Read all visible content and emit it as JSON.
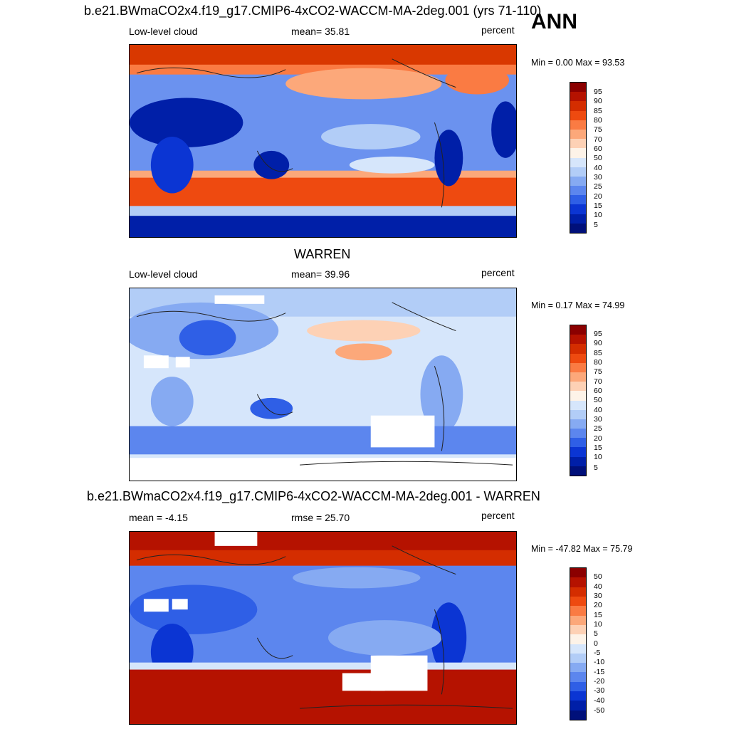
{
  "labels": {
    "title1": "b.e21.BWmaCO2x4.f19_g17.CMIP6-4xCO2-WACCM-MA-2deg.001 (yrs 71-110)",
    "ann": "ANN",
    "title2": "WARREN",
    "title3": "b.e21.BWmaCO2x4.f19_g17.CMIP6-4xCO2-WACCM-MA-2deg.001 - WARREN"
  },
  "panels": [
    {
      "left_label": "Low-level cloud",
      "center_label": "mean=  35.81",
      "right_label": "percent",
      "minmax": "Min =   0.00 Max =  93.53",
      "colorbar_ticks": [
        "95",
        "90",
        "85",
        "80",
        "75",
        "70",
        "60",
        "50",
        "40",
        "30",
        "25",
        "20",
        "15",
        "10",
        "5"
      ]
    },
    {
      "left_label": "Low-level cloud",
      "center_label": "mean=  39.96",
      "right_label": "percent",
      "minmax": "Min =   0.17 Max =  74.99",
      "colorbar_ticks": [
        "95",
        "90",
        "85",
        "80",
        "75",
        "70",
        "60",
        "50",
        "40",
        "30",
        "25",
        "20",
        "15",
        "10",
        "5"
      ]
    },
    {
      "left_label": "mean =  -4.15",
      "center_label": "rmse =  25.70",
      "right_label": "percent",
      "minmax": "Min = -47.82 Max =  75.79",
      "colorbar_ticks": [
        "50",
        "40",
        "30",
        "20",
        "15",
        "10",
        "5",
        "0",
        "-5",
        "-10",
        "-15",
        "-20",
        "-30",
        "-40",
        "-50"
      ]
    }
  ],
  "colors": {
    "scale_top_to_bottom": [
      "#8b0000",
      "#b51200",
      "#d42d00",
      "#ee4a10",
      "#fa7b43",
      "#fca87a",
      "#fdd1b5",
      "#fdf3e8",
      "#d6e6fb",
      "#b2cdf7",
      "#86aaf2",
      "#5c86ee",
      "#2f5fe6",
      "#0b35d3",
      "#001fa8",
      "#00107a"
    ]
  }
}
